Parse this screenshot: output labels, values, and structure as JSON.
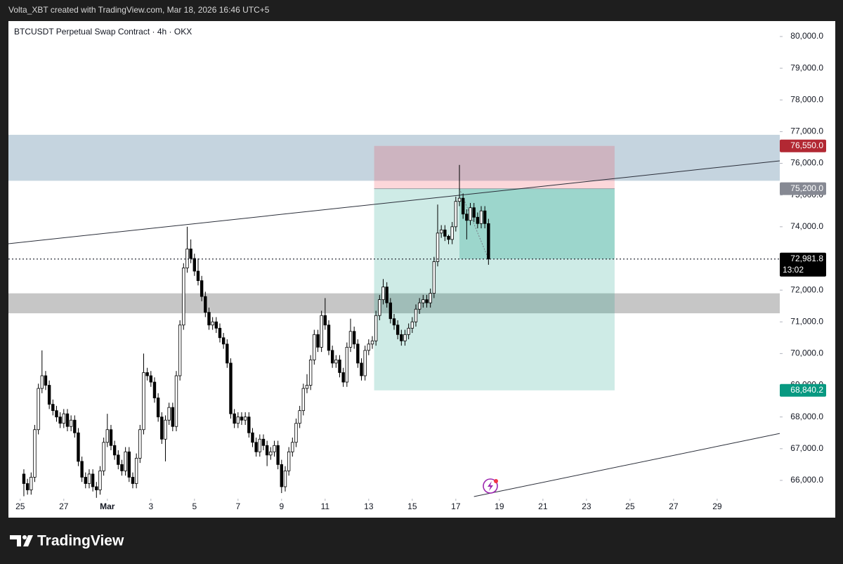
{
  "header": "Volta_XBT created with TradingView.com, Mar 18, 2026 16:46 UTC+5",
  "footer_logo": "TradingView",
  "chart_data": {
    "type": "candlestick",
    "title": "BTCUSDT Perpetual Swap Contract · 4h · OKX",
    "up_color": "#ffffff",
    "down_color": "#000000",
    "border_color": "#000000",
    "xlim": [
      "2026-02-24T11:00",
      "2026-03-31T21:00"
    ],
    "xticks": [
      {
        "value": "2026-02-25",
        "label": "25"
      },
      {
        "value": "2026-02-27",
        "label": "27"
      },
      {
        "value": "2026-03-01",
        "label": "Mar"
      },
      {
        "value": "2026-03-03",
        "label": "3"
      },
      {
        "value": "2026-03-05",
        "label": "5"
      },
      {
        "value": "2026-03-07",
        "label": "7"
      },
      {
        "value": "2026-03-09",
        "label": "9"
      },
      {
        "value": "2026-03-11",
        "label": "11"
      },
      {
        "value": "2026-03-13",
        "label": "13"
      },
      {
        "value": "2026-03-15",
        "label": "15"
      },
      {
        "value": "2026-03-17",
        "label": "17"
      },
      {
        "value": "2026-03-19",
        "label": "19"
      },
      {
        "value": "2026-03-21",
        "label": "21"
      },
      {
        "value": "2026-03-23",
        "label": "23"
      },
      {
        "value": "2026-03-25",
        "label": "25"
      },
      {
        "value": "2026-03-27",
        "label": "27"
      },
      {
        "value": "2026-03-29",
        "label": "29"
      }
    ],
    "ylim": [
      65423,
      80487
    ],
    "yticks": [
      {
        "value": 66000,
        "label": "66,000.0"
      },
      {
        "value": 67000,
        "label": "67,000.0"
      },
      {
        "value": 68000,
        "label": "68,000.0"
      },
      {
        "value": 69000,
        "label": "69,000.0"
      },
      {
        "value": 70000,
        "label": "70,000.0"
      },
      {
        "value": 71000,
        "label": "71,000.0"
      },
      {
        "value": 72000,
        "label": "72,000.0"
      },
      {
        "value": 73000,
        "label": "73,000.0"
      },
      {
        "value": 74000,
        "label": "74,000.0"
      },
      {
        "value": 75000,
        "label": "75,000.0"
      },
      {
        "value": 76000,
        "label": "76,000.0"
      },
      {
        "value": 77000,
        "label": "77,000.0"
      },
      {
        "value": 78000,
        "label": "78,000.0"
      },
      {
        "value": 79000,
        "label": "79,000.0"
      },
      {
        "value": 80000,
        "label": "80,000.0"
      }
    ],
    "zones": [
      {
        "top": 76900,
        "bottom": 75450,
        "color": "#c5d4df"
      },
      {
        "top": 71900,
        "bottom": 71270,
        "color": "#c6c6c6"
      }
    ],
    "trendlines": [
      [
        [
          "2026-02-24T11:00",
          73465
        ],
        [
          "2026-03-31T21:00",
          76080
        ]
      ],
      [
        [
          "2026-03-17T20:00",
          65490
        ],
        [
          "2026-03-31T21:00",
          67480
        ]
      ]
    ],
    "position": {
      "start": "2026-03-13T06:00",
      "end": "2026-03-24T07:00",
      "entry_time": "2026-03-17T04:00",
      "stop": 76550,
      "stop_label": "76,550.0",
      "entry": 75200,
      "entry_label": "75,200.0",
      "target": 68840.2,
      "target_label": "68,840.2"
    },
    "last_price": 72981.8,
    "last_price_label": "72,981.8",
    "countdown": "13:02",
    "candles": [
      [
        "2026-02-25T04:00",
        66200,
        66350,
        65500,
        65900
      ],
      [
        "2026-02-25T08:00",
        65900,
        66050,
        65550,
        65700
      ],
      [
        "2026-02-25T12:00",
        65700,
        66250,
        65550,
        66100
      ],
      [
        "2026-02-25T16:00",
        66100,
        67750,
        65950,
        67600
      ],
      [
        "2026-02-25T20:00",
        67600,
        69050,
        67450,
        68900
      ],
      [
        "2026-02-26T00:00",
        68900,
        70100,
        68750,
        69300
      ],
      [
        "2026-02-26T04:00",
        69300,
        69450,
        68850,
        69000
      ],
      [
        "2026-02-26T08:00",
        69000,
        69150,
        68250,
        68400
      ],
      [
        "2026-02-26T12:00",
        68400,
        68550,
        68050,
        68200
      ],
      [
        "2026-02-26T16:00",
        68200,
        68350,
        67850,
        68000
      ],
      [
        "2026-02-26T20:00",
        68000,
        68150,
        67650,
        67800
      ],
      [
        "2026-02-27T00:00",
        67800,
        68250,
        67650,
        68100
      ],
      [
        "2026-02-27T04:00",
        68100,
        68250,
        67550,
        67700
      ],
      [
        "2026-02-27T08:00",
        67700,
        68050,
        67550,
        67900
      ],
      [
        "2026-02-27T12:00",
        67900,
        68050,
        67350,
        67500
      ],
      [
        "2026-02-27T16:00",
        67500,
        67650,
        66450,
        66600
      ],
      [
        "2026-02-27T20:00",
        66600,
        66750,
        65950,
        66100
      ],
      [
        "2026-02-28T00:00",
        66100,
        66250,
        65750,
        65900
      ],
      [
        "2026-02-28T04:00",
        65900,
        66350,
        65750,
        66200
      ],
      [
        "2026-02-28T08:00",
        66200,
        66350,
        65650,
        65800
      ],
      [
        "2026-02-28T12:00",
        65800,
        65950,
        65450,
        65700
      ],
      [
        "2026-02-28T16:00",
        65700,
        66450,
        65550,
        66300
      ],
      [
        "2026-02-28T20:00",
        66300,
        67350,
        66150,
        67200
      ],
      [
        "2026-03-01T00:00",
        67200,
        68100,
        67050,
        67600
      ],
      [
        "2026-03-01T04:00",
        67600,
        67750,
        66950,
        67100
      ],
      [
        "2026-03-01T08:00",
        67100,
        67250,
        66650,
        66800
      ],
      [
        "2026-03-01T12:00",
        66800,
        66950,
        66350,
        66500
      ],
      [
        "2026-03-01T16:00",
        66500,
        66650,
        66150,
        66300
      ],
      [
        "2026-03-01T20:00",
        66300,
        67050,
        66150,
        66900
      ],
      [
        "2026-03-02T00:00",
        66900,
        67050,
        65950,
        66100
      ],
      [
        "2026-03-02T04:00",
        66100,
        66250,
        65750,
        65900
      ],
      [
        "2026-03-02T08:00",
        65900,
        66850,
        65750,
        66700
      ],
      [
        "2026-03-02T12:00",
        66700,
        67750,
        66550,
        67600
      ],
      [
        "2026-03-02T16:00",
        67600,
        70000,
        67450,
        69400
      ],
      [
        "2026-03-02T20:00",
        69400,
        69550,
        69150,
        69300
      ],
      [
        "2026-03-03T00:00",
        69300,
        69450,
        68950,
        69100
      ],
      [
        "2026-03-03T04:00",
        69100,
        69250,
        68450,
        68600
      ],
      [
        "2026-03-03T08:00",
        68600,
        68750,
        67850,
        68000
      ],
      [
        "2026-03-03T12:00",
        68000,
        68150,
        67150,
        67300
      ],
      [
        "2026-03-03T16:00",
        67300,
        68050,
        66600,
        67900
      ],
      [
        "2026-03-03T20:00",
        67900,
        68450,
        67750,
        68300
      ],
      [
        "2026-03-04T00:00",
        68300,
        68450,
        67550,
        67700
      ],
      [
        "2026-03-04T04:00",
        67700,
        69450,
        67550,
        69300
      ],
      [
        "2026-03-04T08:00",
        69300,
        71050,
        69150,
        70900
      ],
      [
        "2026-03-04T12:00",
        70900,
        72850,
        70750,
        72700
      ],
      [
        "2026-03-04T16:00",
        72700,
        74000,
        72550,
        73300
      ],
      [
        "2026-03-04T20:00",
        73300,
        73600,
        72850,
        73000
      ],
      [
        "2026-03-05T00:00",
        73000,
        73150,
        72450,
        72600
      ],
      [
        "2026-03-05T04:00",
        72600,
        73000,
        72150,
        72300
      ],
      [
        "2026-03-05T08:00",
        72300,
        72450,
        71650,
        71800
      ],
      [
        "2026-03-05T12:00",
        71800,
        71950,
        71150,
        71300
      ],
      [
        "2026-03-05T16:00",
        71300,
        71450,
        70750,
        70900
      ],
      [
        "2026-03-05T20:00",
        70900,
        71150,
        70750,
        71000
      ],
      [
        "2026-03-06T00:00",
        71000,
        71150,
        70650,
        70800
      ],
      [
        "2026-03-06T04:00",
        70800,
        70950,
        70350,
        70500
      ],
      [
        "2026-03-06T08:00",
        70500,
        70650,
        70150,
        70300
      ],
      [
        "2026-03-06T12:00",
        70300,
        70450,
        69550,
        69700
      ],
      [
        "2026-03-06T16:00",
        69700,
        69850,
        67950,
        68100
      ],
      [
        "2026-03-06T20:00",
        68100,
        68250,
        67650,
        67800
      ],
      [
        "2026-03-07T00:00",
        67800,
        68150,
        67650,
        68000
      ],
      [
        "2026-03-07T04:00",
        68000,
        68150,
        67750,
        67900
      ],
      [
        "2026-03-07T08:00",
        67900,
        68150,
        67750,
        68000
      ],
      [
        "2026-03-07T12:00",
        68000,
        68150,
        67350,
        67500
      ],
      [
        "2026-03-07T16:00",
        67500,
        67650,
        67050,
        67200
      ],
      [
        "2026-03-07T20:00",
        67200,
        67350,
        66750,
        66900
      ],
      [
        "2026-03-08T00:00",
        66900,
        67450,
        66750,
        67300
      ],
      [
        "2026-03-08T04:00",
        67300,
        67450,
        66950,
        67100
      ],
      [
        "2026-03-08T08:00",
        67100,
        67250,
        66450,
        66800
      ],
      [
        "2026-03-08T12:00",
        66800,
        67050,
        66650,
        66900
      ],
      [
        "2026-03-08T16:00",
        66900,
        67250,
        66750,
        67100
      ],
      [
        "2026-03-08T20:00",
        67100,
        67250,
        66350,
        66500
      ],
      [
        "2026-03-09T00:00",
        66500,
        66650,
        65600,
        65800
      ],
      [
        "2026-03-09T04:00",
        65800,
        66450,
        65650,
        66300
      ],
      [
        "2026-03-09T08:00",
        66300,
        67050,
        66150,
        66900
      ],
      [
        "2026-03-09T12:00",
        66900,
        67350,
        66750,
        67200
      ],
      [
        "2026-03-09T16:00",
        67200,
        67950,
        67050,
        67800
      ],
      [
        "2026-03-09T20:00",
        67800,
        68350,
        67650,
        68200
      ],
      [
        "2026-03-10T00:00",
        68200,
        69050,
        68050,
        68900
      ],
      [
        "2026-03-10T04:00",
        68900,
        69350,
        68750,
        69000
      ],
      [
        "2026-03-10T08:00",
        69000,
        69950,
        68850,
        69800
      ],
      [
        "2026-03-10T12:00",
        69800,
        70750,
        69650,
        70600
      ],
      [
        "2026-03-10T16:00",
        70600,
        70750,
        70050,
        70200
      ],
      [
        "2026-03-10T20:00",
        70200,
        71350,
        70050,
        71200
      ],
      [
        "2026-03-11T00:00",
        71200,
        71750,
        70750,
        70900
      ],
      [
        "2026-03-11T04:00",
        70900,
        71050,
        69950,
        70100
      ],
      [
        "2026-03-11T08:00",
        70100,
        70250,
        69550,
        69700
      ],
      [
        "2026-03-11T12:00",
        69700,
        69950,
        69550,
        69800
      ],
      [
        "2026-03-11T16:00",
        69800,
        69950,
        69250,
        69400
      ],
      [
        "2026-03-11T20:00",
        69400,
        69550,
        68950,
        69100
      ],
      [
        "2026-03-12T00:00",
        69100,
        70350,
        68950,
        70200
      ],
      [
        "2026-03-12T04:00",
        70200,
        71100,
        70050,
        70700
      ],
      [
        "2026-03-12T08:00",
        70700,
        70850,
        70150,
        70300
      ],
      [
        "2026-03-12T12:00",
        70300,
        70450,
        69550,
        69700
      ],
      [
        "2026-03-12T16:00",
        69700,
        69850,
        69150,
        69300
      ],
      [
        "2026-03-12T20:00",
        69300,
        70250,
        69150,
        70100
      ],
      [
        "2026-03-13T00:00",
        70100,
        70450,
        69950,
        70300
      ],
      [
        "2026-03-13T04:00",
        70300,
        70550,
        70150,
        70400
      ],
      [
        "2026-03-13T08:00",
        70400,
        71350,
        70250,
        71200
      ],
      [
        "2026-03-13T12:00",
        71200,
        71850,
        71050,
        71700
      ],
      [
        "2026-03-13T16:00",
        71700,
        72350,
        71550,
        72100
      ],
      [
        "2026-03-13T20:00",
        72100,
        72250,
        71450,
        71600
      ],
      [
        "2026-03-14T00:00",
        71600,
        71750,
        70950,
        71100
      ],
      [
        "2026-03-14T04:00",
        71100,
        71250,
        70750,
        70900
      ],
      [
        "2026-03-14T08:00",
        70900,
        71050,
        70450,
        70600
      ],
      [
        "2026-03-14T12:00",
        70600,
        70750,
        70250,
        70400
      ],
      [
        "2026-03-14T16:00",
        70400,
        70750,
        70250,
        70600
      ],
      [
        "2026-03-14T20:00",
        70600,
        70950,
        70450,
        70800
      ],
      [
        "2026-03-15T00:00",
        70800,
        71150,
        70650,
        71000
      ],
      [
        "2026-03-15T04:00",
        71000,
        71550,
        70850,
        71400
      ],
      [
        "2026-03-15T08:00",
        71400,
        71750,
        71250,
        71600
      ],
      [
        "2026-03-15T12:00",
        71600,
        71850,
        71450,
        71700
      ],
      [
        "2026-03-15T16:00",
        71700,
        71850,
        71450,
        71600
      ],
      [
        "2026-03-15T20:00",
        71600,
        72050,
        71450,
        71900
      ],
      [
        "2026-03-16T00:00",
        71900,
        73050,
        71750,
        72900
      ],
      [
        "2026-03-16T04:00",
        72900,
        74700,
        72750,
        73800
      ],
      [
        "2026-03-16T08:00",
        73800,
        74050,
        73650,
        73900
      ],
      [
        "2026-03-16T12:00",
        73900,
        74050,
        73550,
        73700
      ],
      [
        "2026-03-16T16:00",
        73700,
        73750,
        73450,
        73600
      ],
      [
        "2026-03-16T20:00",
        73600,
        74150,
        73450,
        74000
      ],
      [
        "2026-03-17T00:00",
        74000,
        74950,
        73850,
        74800
      ],
      [
        "2026-03-17T04:00",
        74800,
        75950,
        74650,
        74900
      ],
      [
        "2026-03-17T08:00",
        74900,
        75050,
        74250,
        74400
      ],
      [
        "2026-03-17T12:00",
        74400,
        74550,
        73600,
        74200
      ],
      [
        "2026-03-17T16:00",
        74200,
        74750,
        74050,
        74600
      ],
      [
        "2026-03-17T20:00",
        74600,
        74750,
        74150,
        74300
      ],
      [
        "2026-03-18T00:00",
        74300,
        74450,
        73950,
        74100
      ],
      [
        "2026-03-18T04:00",
        74100,
        74650,
        73950,
        74500
      ],
      [
        "2026-03-18T08:00",
        74500,
        74650,
        73950,
        74100
      ],
      [
        "2026-03-18T12:00",
        74100,
        74250,
        72800,
        72981.8
      ]
    ]
  }
}
